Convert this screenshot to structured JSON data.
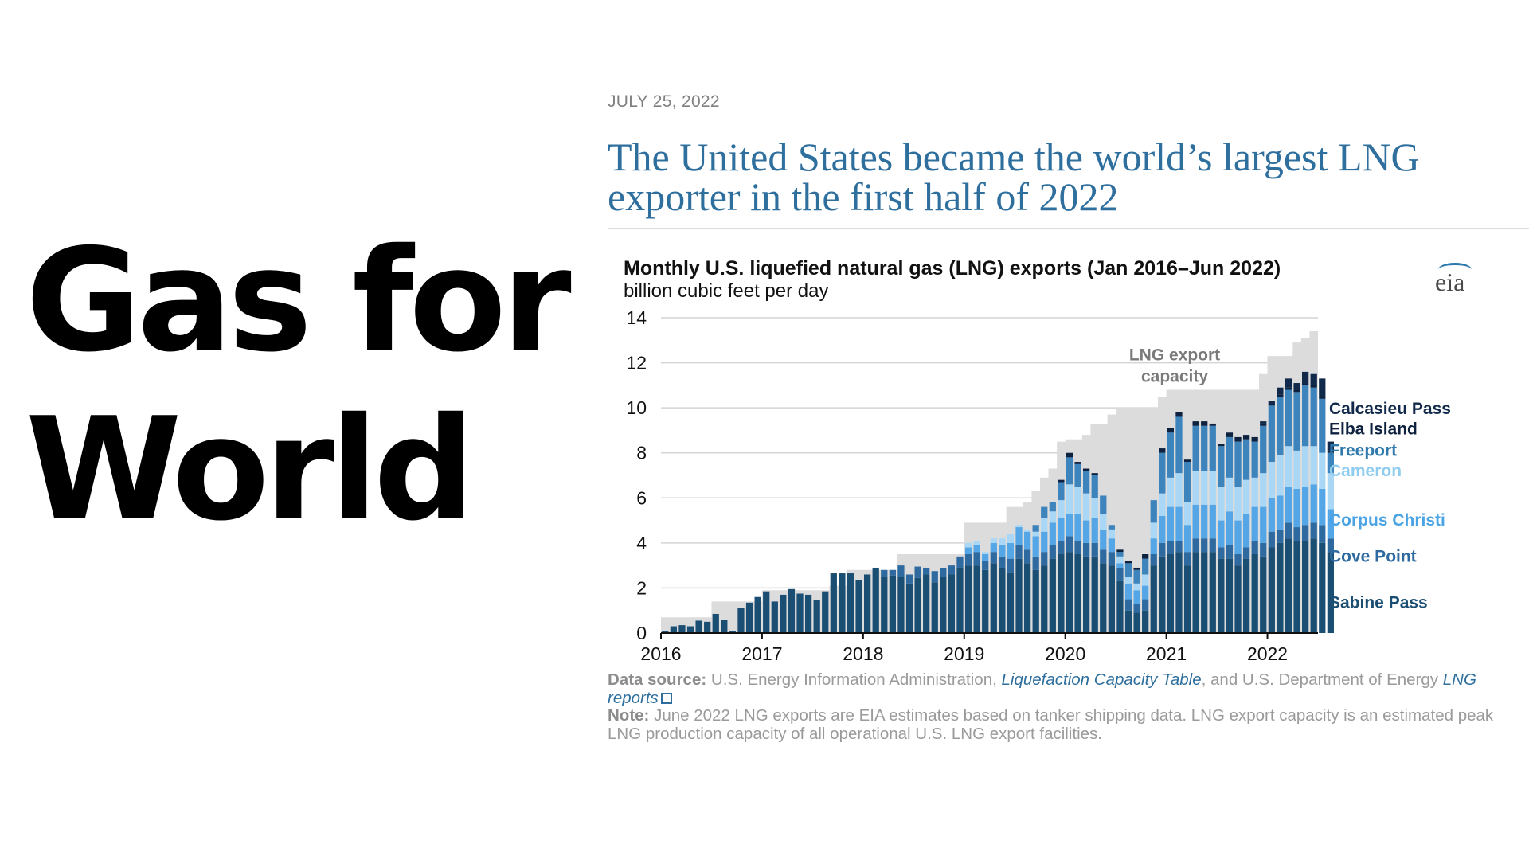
{
  "slide": {
    "title_line1": "Gas for",
    "title_line2": "World"
  },
  "article": {
    "date": "JULY 25, 2022",
    "headline": "The United States became the world’s largest LNG exporter in the first half of 2022"
  },
  "logo": {
    "text": "eia"
  },
  "colors": {
    "capacity": "#dcdcdc",
    "sabine_pass": "#1b4e73",
    "cove_point": "#2e6aa0",
    "corpus_christi": "#54a6e6",
    "cameron": "#a9d7f5",
    "freeport": "#3d84bd",
    "elba_island": "#0e2240",
    "calcasieu_pass": "#11294a",
    "headline": "#2e6f9e"
  },
  "source_note": {
    "source_label": "Data source:",
    "source_text_1": "U.S. Energy Information Administration,",
    "source_link_1": "Liquefaction Capacity Table",
    "source_text_2": ", and U.S. Department of Energy",
    "source_link_2": "LNG reports",
    "note_label": "Note:",
    "note_text": "June 2022 LNG exports are EIA estimates based on tanker shipping data. LNG export capacity is an estimated peak LNG production capacity of all operational U.S. LNG export facilities."
  },
  "chart_data": {
    "type": "stacked-bar",
    "title": "Monthly U.S. liquefied natural gas (LNG) exports (Jan 2016–Jun 2022)",
    "ylabel": "billion cubic feet per day",
    "ylim": [
      0,
      14
    ],
    "yticks": [
      "0",
      "2",
      "4",
      "6",
      "8",
      "10",
      "12",
      "14"
    ],
    "xticks": [
      "2016",
      "2017",
      "2018",
      "2019",
      "2020",
      "2021",
      "2022"
    ],
    "annotation": "LNG export capacity",
    "annotation_line1": "LNG export",
    "annotation_line2": "capacity",
    "series_names": [
      "Sabine Pass",
      "Cove Point",
      "Corpus Christi",
      "Cameron",
      "Freeport",
      "Elba Island",
      "Calcasieu Pass"
    ],
    "legend": [
      {
        "label": "Calcasieu Pass",
        "color": "#11294a",
        "y": 10.0
      },
      {
        "label": "Elba Island",
        "color": "#0e2240",
        "y": 9.1
      },
      {
        "label": "Freeport",
        "color": "#2e79ad",
        "y": 8.15
      },
      {
        "label": "Cameron",
        "color": "#8fcdf0",
        "y": 7.25
      },
      {
        "label": "Corpus Christi",
        "color": "#4aa3e4",
        "y": 5.05
      },
      {
        "label": "Cove Point",
        "color": "#2e6aa0",
        "y": 3.45
      },
      {
        "label": "Sabine Pass",
        "color": "#1b4e73",
        "y": 1.4
      }
    ],
    "months": 78,
    "start": "Jan 2016",
    "capacity": [
      0.7,
      0.7,
      0.7,
      0.7,
      0.7,
      0.7,
      1.4,
      1.4,
      1.4,
      1.4,
      1.4,
      1.4,
      1.9,
      1.9,
      1.9,
      1.9,
      1.9,
      1.9,
      1.9,
      1.9,
      2.1,
      2.1,
      2.8,
      2.8,
      2.8,
      2.8,
      2.8,
      2.8,
      3.5,
      3.5,
      3.5,
      3.5,
      3.5,
      3.5,
      3.5,
      3.5,
      4.9,
      4.9,
      4.9,
      4.9,
      4.9,
      5.6,
      5.6,
      5.8,
      6.3,
      6.9,
      7.3,
      8.5,
      8.6,
      8.6,
      8.8,
      9.3,
      9.3,
      9.7,
      10.0,
      10.0,
      10.0,
      10.0,
      10.0,
      10.5,
      10.8,
      10.8,
      10.8,
      10.8,
      10.8,
      10.8,
      10.8,
      10.8,
      10.8,
      10.8,
      10.8,
      11.5,
      12.3,
      12.3,
      12.3,
      12.9,
      13.1,
      13.4
    ],
    "stacks": [
      [
        0.1
      ],
      [
        0.3
      ],
      [
        0.35
      ],
      [
        0.3
      ],
      [
        0.55
      ],
      [
        0.5
      ],
      [
        0.85
      ],
      [
        0.6
      ],
      [
        0.1
      ],
      [
        1.1
      ],
      [
        1.35
      ],
      [
        1.6
      ],
      [
        1.85
      ],
      [
        1.4
      ],
      [
        1.7
      ],
      [
        1.95
      ],
      [
        1.75
      ],
      [
        1.7
      ],
      [
        1.45
      ],
      [
        1.85
      ],
      [
        2.65
      ],
      [
        2.65
      ],
      [
        2.65
      ],
      [
        2.35
      ],
      [
        2.6
      ],
      [
        2.9
      ],
      [
        2.5,
        0.3
      ],
      [
        2.55,
        0.25
      ],
      [
        2.5,
        0.5
      ],
      [
        2.2,
        0.4
      ],
      [
        2.45,
        0.5
      ],
      [
        2.6,
        0.3
      ],
      [
        2.25,
        0.5
      ],
      [
        2.5,
        0.4
      ],
      [
        2.6,
        0.4
      ],
      [
        2.9,
        0.5
      ],
      [
        3.0,
        0.5,
        0.3,
        0.2
      ],
      [
        3.0,
        0.6,
        0.3,
        0.2
      ],
      [
        2.8,
        0.4,
        0.3,
        0.1
      ],
      [
        3.1,
        0.5,
        0.4,
        0.2
      ],
      [
        2.9,
        0.5,
        0.5,
        0.3
      ],
      [
        2.7,
        0.6,
        0.7,
        0.4
      ],
      [
        3.3,
        0.6,
        0.8,
        0.1
      ],
      [
        3.1,
        0.6,
        0.8,
        0.1
      ],
      [
        2.8,
        0.6,
        0.9,
        0.2,
        0.3
      ],
      [
        3.0,
        0.6,
        0.9,
        0.6,
        0.5
      ],
      [
        3.3,
        0.6,
        1.0,
        0.5,
        0.4
      ],
      [
        3.5,
        0.6,
        1.0,
        0.8,
        0.8,
        0.1
      ],
      [
        3.6,
        0.7,
        1.0,
        1.3,
        1.2,
        0.2
      ],
      [
        3.5,
        0.6,
        1.2,
        1.2,
        1.0,
        0.1
      ],
      [
        3.4,
        0.6,
        1.0,
        1.2,
        1.0,
        0.1
      ],
      [
        3.4,
        0.6,
        1.1,
        0.9,
        1.0,
        0.1
      ],
      [
        3.1,
        0.6,
        0.9,
        0.7,
        0.8
      ],
      [
        3.0,
        0.6,
        0.6,
        0.4,
        0.2
      ],
      [
        2.3,
        0.6,
        0.2,
        0.3,
        0.2,
        0.1
      ],
      [
        1.0,
        0.5,
        0.7,
        0.3,
        0.6,
        0.1
      ],
      [
        0.9,
        0.4,
        0.6,
        0.3,
        0.6,
        0.1
      ],
      [
        1.0,
        0.5,
        0.6,
        0.5,
        0.7,
        0.2
      ],
      [
        3.0,
        0.5,
        0.7,
        0.7,
        1.0
      ],
      [
        3.4,
        0.6,
        1.2,
        1.0,
        1.8,
        0.2
      ],
      [
        3.5,
        0.6,
        1.5,
        1.3,
        2.0,
        0.2
      ],
      [
        3.6,
        0.5,
        1.5,
        1.5,
        2.5,
        0.2
      ],
      [
        3.0,
        0.6,
        1.2,
        1.0,
        1.8,
        0.1
      ],
      [
        3.6,
        0.6,
        1.5,
        1.5,
        2.0,
        0.2
      ],
      [
        3.6,
        0.6,
        1.5,
        1.5,
        2.0,
        0.2
      ],
      [
        3.6,
        0.6,
        1.5,
        1.5,
        2.0,
        0.1
      ],
      [
        3.3,
        0.5,
        1.2,
        1.5,
        1.8,
        0.1
      ],
      [
        3.3,
        0.6,
        1.5,
        1.5,
        1.8,
        0.2
      ],
      [
        3.0,
        0.5,
        1.5,
        1.5,
        2.0,
        0.2
      ],
      [
        3.3,
        0.5,
        1.5,
        1.5,
        1.8,
        0.2
      ],
      [
        3.5,
        0.6,
        1.5,
        1.3,
        1.6,
        0.2
      ],
      [
        3.4,
        0.6,
        1.6,
        1.5,
        2.1,
        0.1,
        0.1
      ],
      [
        3.8,
        0.7,
        1.5,
        1.6,
        2.5,
        0.1,
        0.1
      ],
      [
        4.0,
        0.6,
        1.5,
        1.8,
        2.6,
        0.1,
        0.3
      ],
      [
        4.2,
        0.7,
        1.6,
        1.8,
        2.5,
        0.1,
        0.4
      ],
      [
        4.1,
        0.6,
        1.7,
        1.7,
        2.6,
        0.1,
        0.3
      ],
      [
        4.1,
        0.7,
        1.7,
        1.8,
        2.7,
        0.1,
        0.5
      ],
      [
        4.2,
        0.7,
        1.7,
        1.7,
        2.6,
        0.1,
        0.5
      ],
      [
        4.0,
        0.8,
        1.6,
        1.6,
        2.4,
        0.1,
        0.8
      ],
      [
        3.6,
        0.6,
        1.3,
        1.6,
        0.9,
        0.1,
        0.4
      ]
    ]
  }
}
